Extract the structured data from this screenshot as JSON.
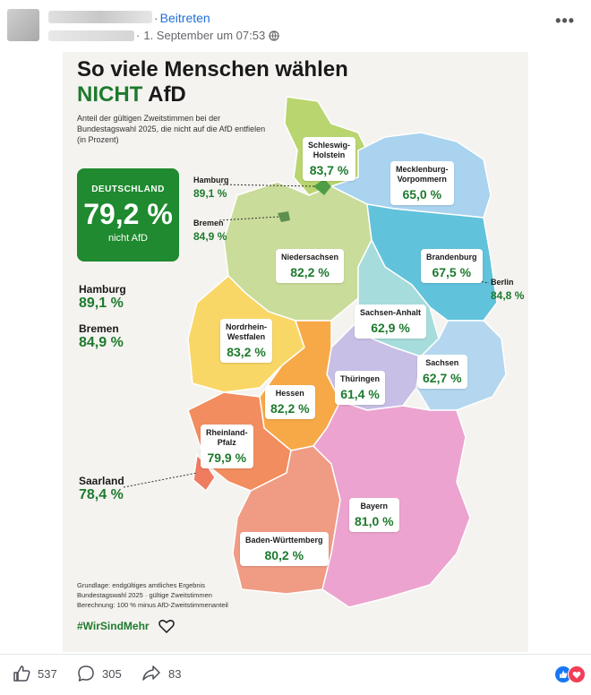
{
  "post": {
    "join_label": "Beitreten",
    "timestamp": "1. September um 07:53",
    "more_label": "•••"
  },
  "graphic": {
    "title_line1": "So viele Menschen wählen",
    "title_nicht": "NICHT",
    "title_afd": "AfD",
    "subtitle": "Anteil der gültigen Zweitstimmen bei der Bundestagswahl 2025, die nicht auf die AfD entfielen (in Prozent)",
    "national": {
      "label": "DEUTSCHLAND",
      "value": "79,2 %",
      "sub": "nicht AfD"
    },
    "side_list": [
      {
        "name": "Hamburg",
        "value": "89,1 %"
      },
      {
        "name": "Bremen",
        "value": "84,9 %"
      },
      {
        "name": "Saarland",
        "value": "78,4 %"
      }
    ],
    "states": [
      {
        "name": "Schleswig-Holstein",
        "value": "83,7 %"
      },
      {
        "name": "Mecklenburg-Vorpommern",
        "value": "65,0 %"
      },
      {
        "name": "Hamburg",
        "value": "89,1 %"
      },
      {
        "name": "Bremen",
        "value": "84,9 %"
      },
      {
        "name": "Niedersachsen",
        "value": "82,2 %"
      },
      {
        "name": "Brandenburg",
        "value": "67,5 %"
      },
      {
        "name": "Berlin",
        "value": "84,8 %"
      },
      {
        "name": "Sachsen-Anhalt",
        "value": "62,9 %"
      },
      {
        "name": "Nordrhein-Westfalen",
        "value": "83,2 %"
      },
      {
        "name": "Sachsen",
        "value": "62,7 %"
      },
      {
        "name": "Thüringen",
        "value": "61,4 %"
      },
      {
        "name": "Hessen",
        "value": "82,2 %"
      },
      {
        "name": "Rheinland-Pfalz",
        "value": "79,9 %"
      },
      {
        "name": "Bayern",
        "value": "81,0 %"
      },
      {
        "name": "Baden-Württemberg",
        "value": "80,2 %"
      }
    ],
    "state_labels": {
      "sh_1": "Schleswig-",
      "sh_2": "Holstein",
      "mv_1": "Mecklenburg-",
      "mv_2": "Vorpommern",
      "nrw_1": "Nordrhein-",
      "nrw_2": "Westfalen",
      "rp_1": "Rheinland-",
      "rp_2": "Pfalz"
    },
    "footnote": [
      "Grundlage: endgültiges amtliches Ergebnis",
      "Bundestagswahl 2025 · gültige Zweitstimmen",
      "Berechnung: 100 % minus AfD-Zweitstimmenanteil"
    ],
    "hashtag": "#WirSindMehr",
    "colors": {
      "green": "#1e7a2e",
      "box_green": "#1f8a2f",
      "schleswig_holstein": "#b9d56f",
      "niedersachsen": "#c9dc9a",
      "mecklenburg_vorpommern": "#a9d3ef",
      "brandenburg": "#61c2db",
      "sachsen_anhalt": "#a6dcdc",
      "sachsen": "#b4d7ef",
      "thueringen": "#c7bfe6",
      "nrw": "#f8d766",
      "hessen": "#f7a947",
      "rheinland_pfalz": "#f28d5f",
      "saarland": "#ef7b61",
      "baden_wuerttemberg": "#f09b84",
      "bayern": "#eca3cf"
    }
  },
  "actions": {
    "like_count": "537",
    "comment_count": "305",
    "share_count": "83"
  }
}
